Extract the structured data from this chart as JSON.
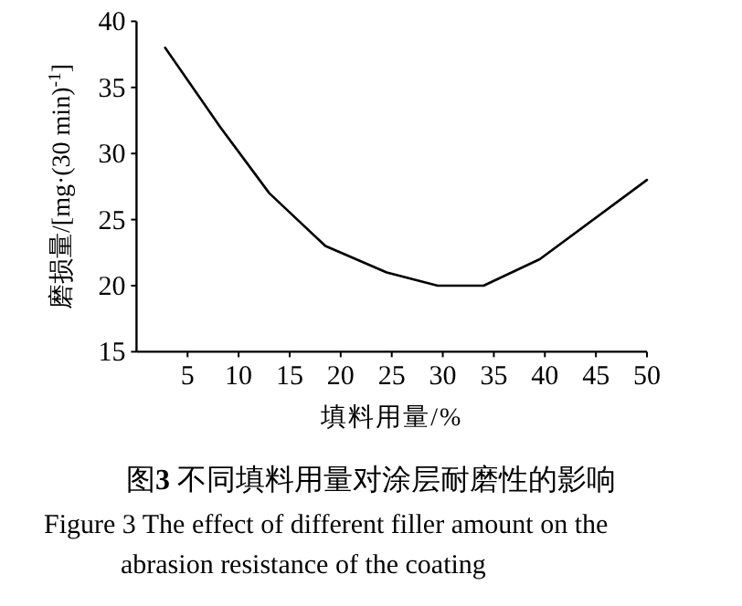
{
  "chart_data": {
    "type": "line",
    "title": "图**3**  不同填料用量对涂层耐磨性的影响",
    "subtitle": "Figure 3  The effect of different filler amount on the abrasion resistance of the coating",
    "xlabel": "填料用量/%",
    "ylabel": "磨损量/[mg·(30 min)$^{-1}$]",
    "x": [
      2.8,
      8.2,
      13,
      18.5,
      24.5,
      29.5,
      34,
      39.5,
      50
    ],
    "values": [
      38,
      32,
      27,
      23,
      21,
      20,
      20,
      22,
      28
    ],
    "color": "#000000",
    "xlim": [
      0,
      50
    ],
    "ylim": [
      15,
      40
    ],
    "xticks": [
      5,
      10,
      15,
      20,
      25,
      30,
      35,
      40,
      45,
      50
    ],
    "yticks": [
      15,
      20,
      25,
      30,
      35,
      40
    ]
  }
}
